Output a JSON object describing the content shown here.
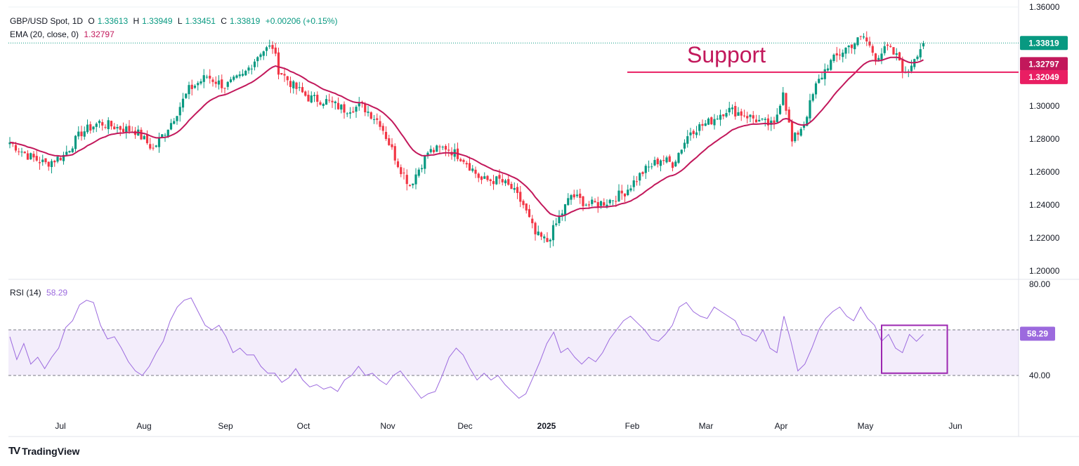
{
  "legend": {
    "symbol": "GBP/USD Spot, 1D",
    "open_label": "O",
    "open": "1.33613",
    "high_label": "H",
    "high": "1.33949",
    "low_label": "L",
    "low": "1.33451",
    "close_label": "C",
    "close": "1.33819",
    "change": "+0.00206 (+0.15%)",
    "ema_label": "EMA (20, close, 0)",
    "ema_value": "1.32797",
    "rsi_label": "RSI (14)",
    "rsi_value": "58.29"
  },
  "annotation": {
    "support_text": "Support",
    "support_level": 1.32049
  },
  "branding": {
    "logo_text": "TradingView"
  },
  "colors": {
    "up": "#089981",
    "down": "#f23645",
    "ema": "#c2185b",
    "rsi": "#9c6ade",
    "support": "#e91e63",
    "highlight_box": "#9c27b0"
  },
  "chart_data": {
    "type": "candlestick",
    "price_axis": {
      "ticks": [
        1.2,
        1.22,
        1.24,
        1.26,
        1.28,
        1.3,
        1.32,
        1.34,
        1.36
      ],
      "range": [
        1.195,
        1.36
      ]
    },
    "price_labels": [
      {
        "text": "1.33819",
        "value": 1.33819,
        "color": "#089981"
      },
      {
        "text": "1.32797",
        "value": 1.32797,
        "color": "#c2185b"
      },
      {
        "text": "1.32049",
        "value": 1.32049,
        "color": "#e91e63"
      }
    ],
    "x_axis_labels": [
      "Jul",
      "Aug",
      "Sep",
      "Oct",
      "Nov",
      "Dec",
      "2025",
      "Feb",
      "Mar",
      "Apr",
      "May",
      "Jun"
    ],
    "close_series_anchors": [
      [
        0,
        1.278
      ],
      [
        6,
        1.27
      ],
      [
        12,
        1.265
      ],
      [
        18,
        1.27
      ],
      [
        24,
        1.284
      ],
      [
        30,
        1.29
      ],
      [
        36,
        1.287
      ],
      [
        42,
        1.285
      ],
      [
        48,
        1.274
      ],
      [
        54,
        1.29
      ],
      [
        60,
        1.31
      ],
      [
        66,
        1.318
      ],
      [
        72,
        1.312
      ],
      [
        78,
        1.318
      ],
      [
        84,
        1.333
      ],
      [
        88,
        1.336
      ],
      [
        90,
        1.322
      ],
      [
        95,
        1.312
      ],
      [
        100,
        1.305
      ],
      [
        106,
        1.303
      ],
      [
        112,
        1.298
      ],
      [
        118,
        1.3
      ],
      [
        124,
        1.29
      ],
      [
        130,
        1.265
      ],
      [
        134,
        1.252
      ],
      [
        140,
        1.272
      ],
      [
        146,
        1.275
      ],
      [
        152,
        1.268
      ],
      [
        158,
        1.255
      ],
      [
        164,
        1.255
      ],
      [
        168,
        1.25
      ],
      [
        172,
        1.24
      ],
      [
        176,
        1.222
      ],
      [
        180,
        1.218
      ],
      [
        184,
        1.232
      ],
      [
        188,
        1.246
      ],
      [
        194,
        1.24
      ],
      [
        200,
        1.242
      ],
      [
        206,
        1.248
      ],
      [
        212,
        1.26
      ],
      [
        218,
        1.268
      ],
      [
        222,
        1.265
      ],
      [
        228,
        1.285
      ],
      [
        234,
        1.29
      ],
      [
        240,
        1.298
      ],
      [
        246,
        1.295
      ],
      [
        252,
        1.29
      ],
      [
        256,
        1.288
      ],
      [
        259,
        1.31
      ],
      [
        262,
        1.278
      ],
      [
        266,
        1.29
      ],
      [
        270,
        1.312
      ],
      [
        274,
        1.325
      ],
      [
        280,
        1.335
      ],
      [
        286,
        1.342
      ],
      [
        290,
        1.33
      ],
      [
        294,
        1.335
      ],
      [
        298,
        1.328
      ],
      [
        300,
        1.318
      ],
      [
        303,
        1.33
      ],
      [
        306,
        1.338
      ]
    ],
    "ema": {
      "name": "EMA (20, close, 0)",
      "last": 1.32797
    },
    "rsi": {
      "name": "RSI (14)",
      "last": 58.29,
      "bands": [
        40,
        60
      ],
      "axis_ticks": [
        40.0,
        80.0
      ],
      "values": [
        57,
        47,
        54,
        45,
        48,
        43,
        48,
        52,
        61,
        64,
        71,
        73,
        72,
        62,
        56,
        57,
        52,
        46,
        42,
        40,
        44,
        50,
        55,
        64,
        70,
        73,
        74,
        68,
        62,
        60,
        62,
        57,
        50,
        52,
        49,
        49,
        44,
        41,
        41,
        37,
        39,
        43,
        38,
        35,
        36,
        34,
        35,
        33,
        38,
        40,
        44,
        40,
        41,
        38,
        36,
        40,
        42,
        38,
        34,
        30,
        32,
        33,
        40,
        48,
        52,
        49,
        43,
        38,
        41,
        38,
        40,
        36,
        33,
        30,
        32,
        39,
        46,
        54,
        59,
        50,
        52,
        48,
        45,
        48,
        46,
        50,
        56,
        60,
        64,
        66,
        63,
        60,
        56,
        55,
        58,
        62,
        70,
        72,
        68,
        66,
        65,
        70,
        68,
        66,
        64,
        58,
        57,
        55,
        60,
        52,
        50,
        66,
        55,
        42,
        45,
        52,
        60,
        65,
        68,
        70,
        66,
        64,
        70,
        65,
        62,
        55,
        58,
        52,
        50,
        58,
        55,
        58
      ]
    },
    "highlight_box": {
      "x_from": 292,
      "x_to": 314,
      "rsi_from": 41,
      "rsi_to": 62
    }
  }
}
